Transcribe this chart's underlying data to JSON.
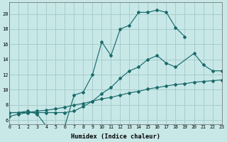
{
  "xlabel": "Humidex (Indice chaleur)",
  "bg_color": "#c8e8e8",
  "grid_color": "#a8cccc",
  "line_color": "#1a6b6b",
  "xlim": [
    0,
    23
  ],
  "ylim": [
    5.5,
    21.5
  ],
  "yticks": [
    6,
    8,
    10,
    12,
    14,
    16,
    18,
    20
  ],
  "xticks": [
    0,
    1,
    2,
    3,
    4,
    5,
    6,
    7,
    8,
    9,
    10,
    11,
    12,
    13,
    14,
    15,
    16,
    17,
    18,
    19,
    20,
    21,
    22,
    23
  ],
  "curve1_x": [
    0,
    1,
    2,
    3,
    4,
    5,
    6,
    7,
    8,
    9,
    10,
    11,
    12,
    13,
    14,
    15,
    16,
    17,
    18,
    19
  ],
  "curve1_y": [
    7.0,
    7.0,
    7.2,
    6.8,
    5.2,
    5.2,
    5.2,
    9.3,
    9.7,
    12.0,
    16.3,
    14.5,
    18.0,
    18.5,
    20.2,
    20.2,
    20.5,
    20.2,
    18.2,
    17.0
  ],
  "curve2_x": [
    0,
    1,
    2,
    3,
    4,
    5,
    6,
    7,
    8,
    9,
    10,
    11,
    12,
    13,
    14,
    15,
    16,
    17,
    18,
    20,
    21,
    22,
    23
  ],
  "curve2_y": [
    7.0,
    7.0,
    7.0,
    7.0,
    7.0,
    7.0,
    7.0,
    7.2,
    7.8,
    8.5,
    9.5,
    10.3,
    11.5,
    12.5,
    13.0,
    14.0,
    14.5,
    13.5,
    13.0,
    14.8,
    13.3,
    12.5,
    12.5
  ],
  "curve3_x": [
    0,
    1,
    2,
    3,
    4,
    5,
    6,
    7,
    8,
    9,
    10,
    11,
    12,
    13,
    14,
    15,
    16,
    17,
    18,
    19,
    20,
    21,
    22,
    23
  ],
  "curve3_y": [
    6.5,
    6.8,
    7.0,
    7.2,
    7.3,
    7.5,
    7.7,
    8.0,
    8.2,
    8.5,
    8.8,
    9.0,
    9.3,
    9.6,
    9.8,
    10.1,
    10.3,
    10.5,
    10.7,
    10.8,
    11.0,
    11.1,
    11.2,
    11.3
  ]
}
